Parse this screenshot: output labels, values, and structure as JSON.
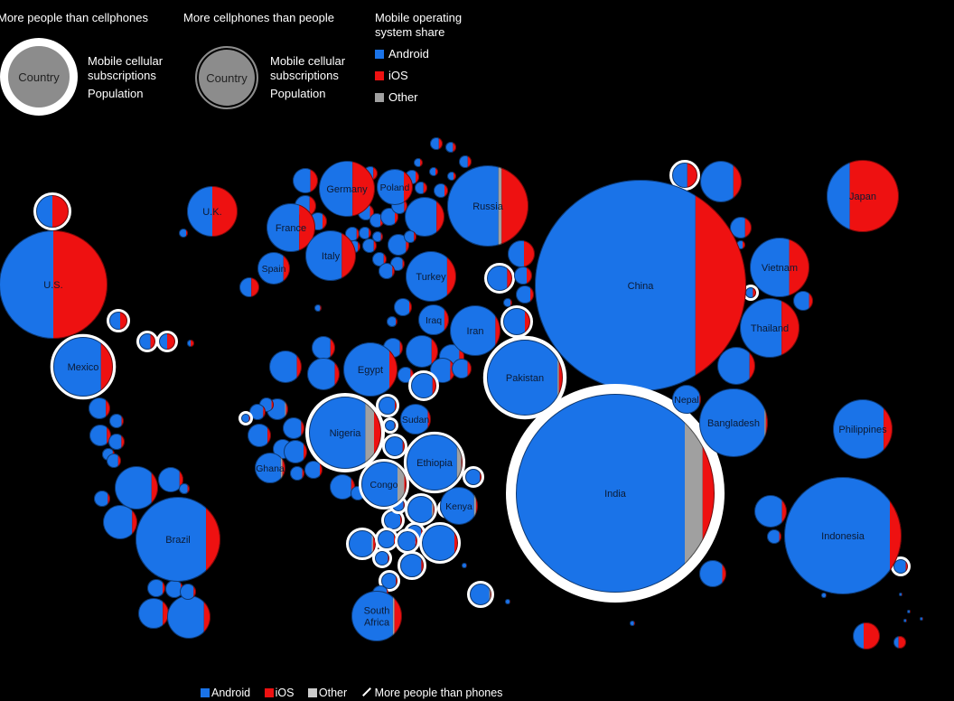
{
  "legend": {
    "more_people_title": "More people than cellphones",
    "more_phones_title": "More cellphones than people",
    "country_label": "Country",
    "subscriptions_label": "Mobile cellular\nsubscriptions",
    "population_label": "Population",
    "os_share_title": "Mobile operating\nsystem share",
    "android": "Android",
    "ios": "iOS",
    "other": "Other",
    "bottom_android": "Android",
    "bottom_ios": "iOS",
    "bottom_other": "Other",
    "bottom_more_people": "More people than phones"
  },
  "colors": {
    "android": "#1a73e8",
    "ios": "#ee1111",
    "other": "#a0a0a0",
    "ring": "#ffffff",
    "background": "#000000"
  },
  "chart_data": {
    "type": "bubble-map",
    "title": "",
    "series_names": [
      "Android",
      "iOS",
      "Other"
    ],
    "labeled_countries": [
      {
        "name": "China",
        "android": 0.76,
        "ios": 0.24,
        "other": 0.0,
        "more_people_than_phones": false
      },
      {
        "name": "India",
        "android": 0.85,
        "ios": 0.06,
        "other": 0.09,
        "more_people_than_phones": true
      },
      {
        "name": "U.S.",
        "android": 0.5,
        "ios": 0.5,
        "other": 0.0,
        "more_people_than_phones": false
      },
      {
        "name": "Indonesia",
        "android": 0.9,
        "ios": 0.1,
        "other": 0.0,
        "more_people_than_phones": false
      },
      {
        "name": "Brazil",
        "android": 0.83,
        "ios": 0.17,
        "other": 0.0,
        "more_people_than_phones": false
      },
      {
        "name": "Russia",
        "android": 0.63,
        "ios": 0.33,
        "other": 0.04,
        "more_people_than_phones": false
      },
      {
        "name": "Pakistan",
        "android": 0.93,
        "ios": 0.05,
        "other": 0.02,
        "more_people_than_phones": true
      },
      {
        "name": "Nigeria",
        "android": 0.78,
        "ios": 0.1,
        "other": 0.12,
        "more_people_than_phones": true
      },
      {
        "name": "Bangladesh",
        "android": 0.95,
        "ios": 0.03,
        "other": 0.02,
        "more_people_than_phones": false
      },
      {
        "name": "Japan",
        "android": 0.32,
        "ios": 0.68,
        "other": 0.0,
        "more_people_than_phones": false
      },
      {
        "name": "Mexico",
        "android": 0.8,
        "ios": 0.2,
        "other": 0.0,
        "more_people_than_phones": true
      },
      {
        "name": "Philippines",
        "android": 0.85,
        "ios": 0.15,
        "other": 0.0,
        "more_people_than_phones": false
      },
      {
        "name": "Vietnam",
        "android": 0.66,
        "ios": 0.34,
        "other": 0.0,
        "more_people_than_phones": false
      },
      {
        "name": "Egypt",
        "android": 0.85,
        "ios": 0.15,
        "other": 0.0,
        "more_people_than_phones": false
      },
      {
        "name": "Ethiopia",
        "android": 0.9,
        "ios": 0.02,
        "other": 0.08,
        "more_people_than_phones": true
      },
      {
        "name": "Germany",
        "android": 0.6,
        "ios": 0.4,
        "other": 0.0,
        "more_people_than_phones": false
      },
      {
        "name": "Turkey",
        "android": 0.82,
        "ios": 0.18,
        "other": 0.0,
        "more_people_than_phones": false
      },
      {
        "name": "Iran",
        "android": 0.9,
        "ios": 0.1,
        "other": 0.0,
        "more_people_than_phones": false
      },
      {
        "name": "Thailand",
        "android": 0.7,
        "ios": 0.3,
        "other": 0.0,
        "more_people_than_phones": false
      },
      {
        "name": "France",
        "android": 0.67,
        "ios": 0.33,
        "other": 0.0,
        "more_people_than_phones": false
      },
      {
        "name": "U.K.",
        "android": 0.5,
        "ios": 0.5,
        "other": 0.0,
        "more_people_than_phones": false
      },
      {
        "name": "Italy",
        "android": 0.72,
        "ios": 0.28,
        "other": 0.0,
        "more_people_than_phones": false
      },
      {
        "name": "South Africa",
        "android": 0.82,
        "ios": 0.15,
        "other": 0.03,
        "more_people_than_phones": false
      },
      {
        "name": "Congo",
        "android": 0.8,
        "ios": 0.05,
        "other": 0.15,
        "more_people_than_phones": true
      },
      {
        "name": "Kenya",
        "android": 0.9,
        "ios": 0.05,
        "other": 0.05,
        "more_people_than_phones": false
      },
      {
        "name": "Spain",
        "android": 0.8,
        "ios": 0.2,
        "other": 0.0,
        "more_people_than_phones": false
      },
      {
        "name": "Sudan",
        "android": 0.9,
        "ios": 0.1,
        "other": 0.0,
        "more_people_than_phones": false
      },
      {
        "name": "Iraq",
        "android": 0.85,
        "ios": 0.15,
        "other": 0.0,
        "more_people_than_phones": false
      },
      {
        "name": "Poland",
        "android": 0.75,
        "ios": 0.25,
        "other": 0.0,
        "more_people_than_phones": false
      },
      {
        "name": "Ghana",
        "android": 0.85,
        "ios": 0.1,
        "other": 0.05,
        "more_people_than_phones": false
      },
      {
        "name": "Nepal",
        "android": 0.95,
        "ios": 0.05,
        "other": 0.0,
        "more_people_than_phones": false
      }
    ]
  }
}
